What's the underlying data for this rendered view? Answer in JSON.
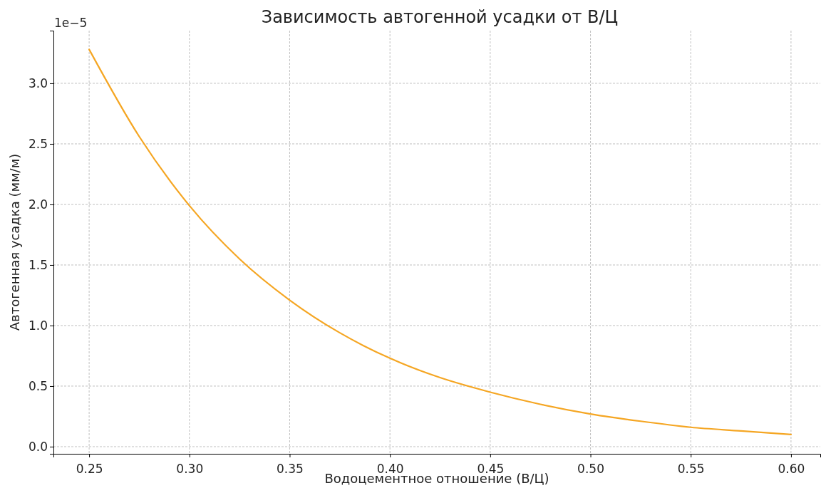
{
  "chart_data": {
    "type": "line",
    "title": "Зависимость автогенной усадки от В/Ц",
    "xlabel": "Водоцементное отношение (В/Ц)",
    "ylabel": "Автогенная усадка (мм/м)",
    "annotations": [
      "1e−5"
    ],
    "x": [
      0.25,
      0.275,
      0.3,
      0.325,
      0.35,
      0.375,
      0.4,
      0.425,
      0.45,
      0.475,
      0.5,
      0.525,
      0.55,
      0.575,
      0.6
    ],
    "series": [
      {
        "color": "#f5a623",
        "values": [
          3.28,
          2.56,
          1.99,
          1.55,
          1.21,
          0.94,
          0.73,
          0.57,
          0.45,
          0.35,
          0.27,
          0.21,
          0.16,
          0.13,
          0.1
        ]
      }
    ],
    "xlim": [
      0.2322,
      0.6146
    ],
    "ylim": [
      -0.059,
      3.435
    ],
    "xticks": [
      0.25,
      {
        "value": 0.3,
        "label": "0.30"
      },
      0.35,
      {
        "value": 0.4,
        "label": "0.40"
      },
      0.45,
      {
        "value": 0.5,
        "label": "0.50"
      },
      0.55,
      {
        "value": 0.6,
        "label": "0.60"
      }
    ],
    "yticks": [
      {
        "value": 0,
        "label": "0.0"
      },
      0.5,
      {
        "value": 1,
        "label": "1.0"
      },
      1.5,
      {
        "value": 2,
        "label": "2.0"
      },
      2.5,
      {
        "value": 3,
        "label": "3.0"
      }
    ],
    "grid": true,
    "marker": "none",
    "line_style": "solid"
  }
}
